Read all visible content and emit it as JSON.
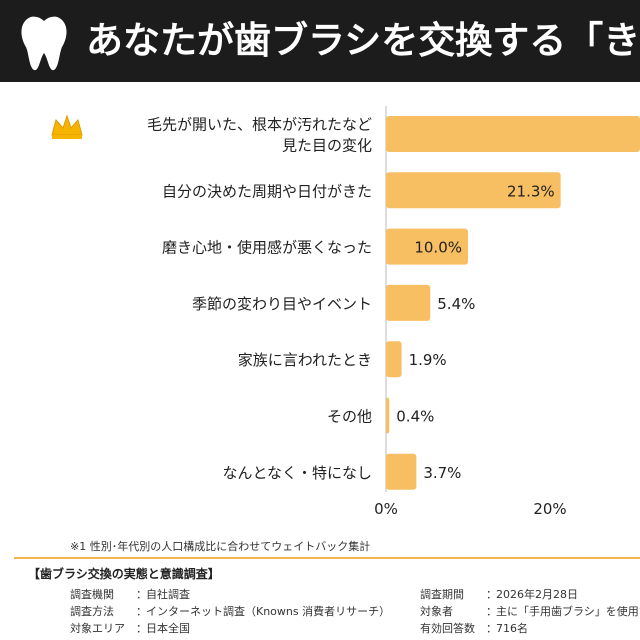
{
  "banner": {
    "title": "あなたが歯ブラシを交換する「き"
  },
  "chart_data": {
    "type": "bar",
    "orientation": "horizontal",
    "categories": [
      [
        "毛先が開いた、根本が汚れたなど",
        "見た目の変化"
      ],
      [
        "自分の決めた周期や日付がきた"
      ],
      [
        "磨き心地・使用感が悪くなった"
      ],
      [
        "季節の変わり目やイベント"
      ],
      [
        "家族に言われたとき"
      ],
      [
        "その他"
      ],
      [
        "なんとなく・特になし"
      ]
    ],
    "values": [
      null,
      21.3,
      10.0,
      5.4,
      1.9,
      0.4,
      3.7
    ],
    "value_labels": [
      "",
      "21.3%",
      "10.0%",
      "5.4%",
      "1.9%",
      "0.4%",
      "3.7%"
    ],
    "top_marker": "crown-icon",
    "x_ticks": [
      "0%",
      "20%"
    ],
    "x_tick_values": [
      0,
      20
    ],
    "xlim_visible": [
      0,
      31
    ],
    "title": "",
    "xlabel": "",
    "ylabel": "",
    "bar_color": "#f7be62",
    "accent_color": "#f2b350",
    "grid": false
  },
  "footnote": "※1 性別･年代別の人口構成比に合わせてウェイトバック集計",
  "survey": {
    "title": "【歯ブラシ交換の実態と意識調査】",
    "rows_left": [
      {
        "k": "調査機関",
        "v": "自社調査"
      },
      {
        "k": "調査方法",
        "v": "インターネット調査（Knowns 消費者リサーチ）"
      },
      {
        "k": "対象エリア",
        "v": "日本全国"
      }
    ],
    "rows_right": [
      {
        "k": "調査期間",
        "v": "2026年2月28日"
      },
      {
        "k": "対象者",
        "v": "主に「手用歯ブラシ」を使用す"
      },
      {
        "k": "有効回答数",
        "v": "716名"
      }
    ],
    "colon": "："
  }
}
